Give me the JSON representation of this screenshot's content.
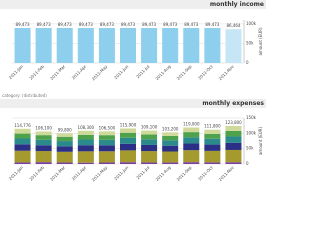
{
  "note": "category: (distributed)",
  "chart_data": [
    {
      "type": "bar",
      "title": "monthly income",
      "y_label": "amount (EUR)",
      "categories": [
        "2011-Jan",
        "2011-Feb",
        "2011-Mar",
        "2011-Apr",
        "2011-May",
        "2011-Jun",
        "2011-Jul",
        "2011-Aug",
        "2011-Sep",
        "2011-Oct",
        "2011-Nov"
      ],
      "values": [
        89473,
        89473,
        89473,
        89473,
        89473,
        89473,
        89473,
        89473,
        89473,
        89473,
        86464
      ],
      "value_labels": [
        "89,473",
        "89,473",
        "89,473",
        "89,473",
        "89,473",
        "89,473",
        "89,473",
        "89,473",
        "89,473",
        "89,473",
        "86,464"
      ],
      "colors": [
        "#8ecfee",
        "#8ecfee",
        "#8ecfee",
        "#8ecfee",
        "#8ecfee",
        "#8ecfee",
        "#8ecfee",
        "#8ecfee",
        "#8ecfee",
        "#8ecfee",
        "#c6e6f5"
      ],
      "ylim": [
        0,
        110000
      ],
      "yticks": [
        0,
        {
          "value": 50000,
          "label": "50k"
        },
        {
          "value": 100000,
          "label": "100k"
        }
      ],
      "grid": true
    },
    {
      "type": "stacked_bar",
      "title": "monthly expenses",
      "y_label": "amount (EUR)",
      "categories": [
        "2011-Jan",
        "2011-Feb",
        "2011-Mar",
        "2011-Apr",
        "2011-May",
        "2011-Jun",
        "2011-Jul",
        "2011-Aug",
        "2011-Sep",
        "2011-Oct",
        "2011-Nov"
      ],
      "series": [
        {
          "color": "#7b3f9e",
          "values": [
            5200,
            6100,
            4800,
            4300,
            5000,
            5900,
            5100,
            4700,
            6000,
            5300,
            5800
          ]
        },
        {
          "color": "#a49a2e",
          "values": [
            38000,
            36000,
            35000,
            37000,
            36500,
            38500,
            37000,
            36000,
            39000,
            37500,
            40000
          ]
        },
        {
          "color": "#2b2f86",
          "values": [
            21000,
            19000,
            18000,
            20000,
            19500,
            21500,
            20000,
            19000,
            22000,
            20500,
            23000
          ]
        },
        {
          "color": "#2b8a8c",
          "values": [
            19000,
            18000,
            17000,
            18500,
            18000,
            19500,
            18500,
            17500,
            20000,
            19000,
            21000
          ]
        },
        {
          "color": "#4ea24c",
          "values": [
            16000,
            15000,
            14000,
            15500,
            15000,
            16500,
            15500,
            14500,
            17000,
            16000,
            18000
          ]
        },
        {
          "color": "#cfd99a",
          "values": [
            15576,
            12000,
            11000,
            13000,
            12500,
            14000,
            13000,
            11500,
            15000,
            13500,
            16000
          ]
        }
      ],
      "totals": [
        114776,
        106100,
        99800,
        108300,
        106500,
        115900,
        109100,
        103200,
        119000,
        111800,
        123800
      ],
      "total_labels": [
        "114,776",
        "106,100",
        "99,800",
        "108,300",
        "106,500",
        "115,900",
        "109,100",
        "103,200",
        "119,000",
        "111,800",
        "123,800"
      ],
      "ylim": [
        0,
        150000
      ],
      "yticks": [
        0,
        {
          "value": 50000,
          "label": "50k"
        },
        {
          "value": 100000,
          "label": "100k"
        },
        {
          "value": 150000,
          "label": "150k"
        }
      ],
      "grid": true
    }
  ]
}
